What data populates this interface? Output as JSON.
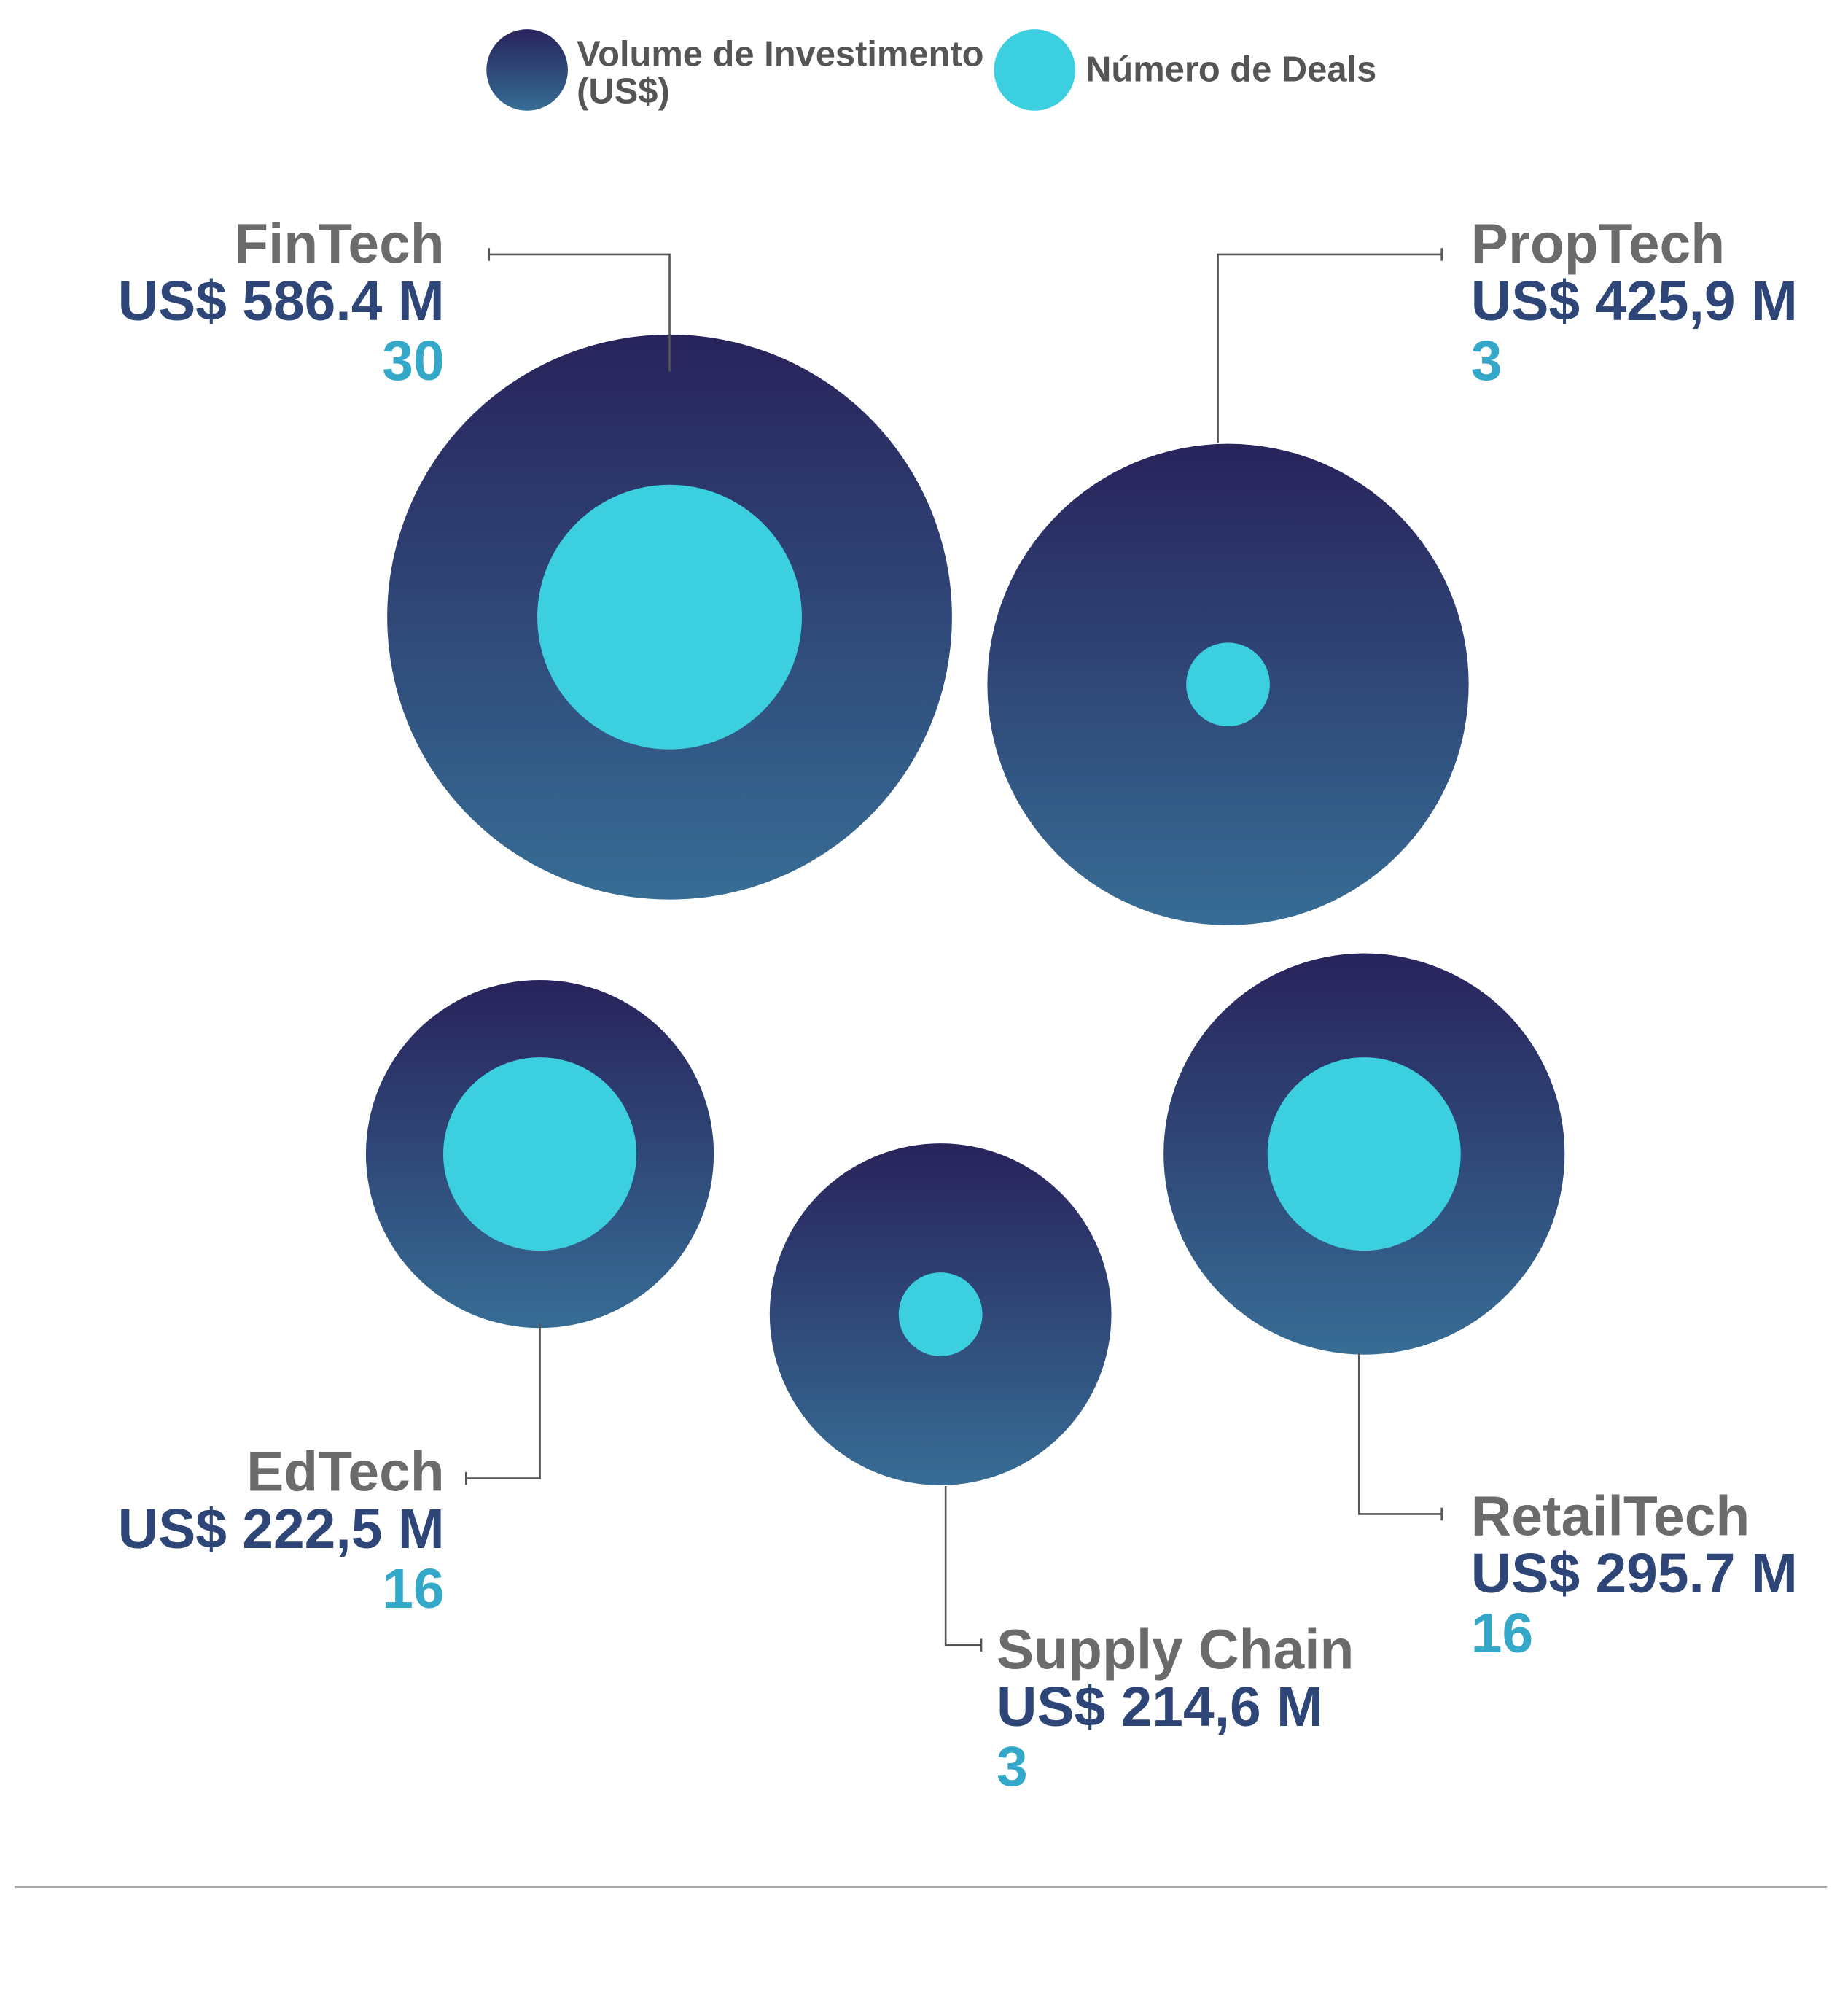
{
  "chart_data": {
    "type": "bubble",
    "categories": [
      "FinTech",
      "PropTech",
      "EdTech",
      "Supply Chain",
      "RetailTech"
    ],
    "series": [
      {
        "name": "Volume de Investimento (US$)",
        "colors": [
          "#28235b",
          "#376d95"
        ],
        "values": [
          586.4,
          425.9,
          222.5,
          214.6,
          295.7
        ],
        "value_labels": [
          "US$ 586.4 M",
          "US$ 425,9 M",
          "US$ 222,5 M",
          "US$ 214,6 M",
          "US$ 295.7 M"
        ]
      },
      {
        "name": "Número de Deals",
        "color": "#3ccfe0",
        "values": [
          30,
          3,
          16,
          3,
          16
        ]
      }
    ]
  }
}
